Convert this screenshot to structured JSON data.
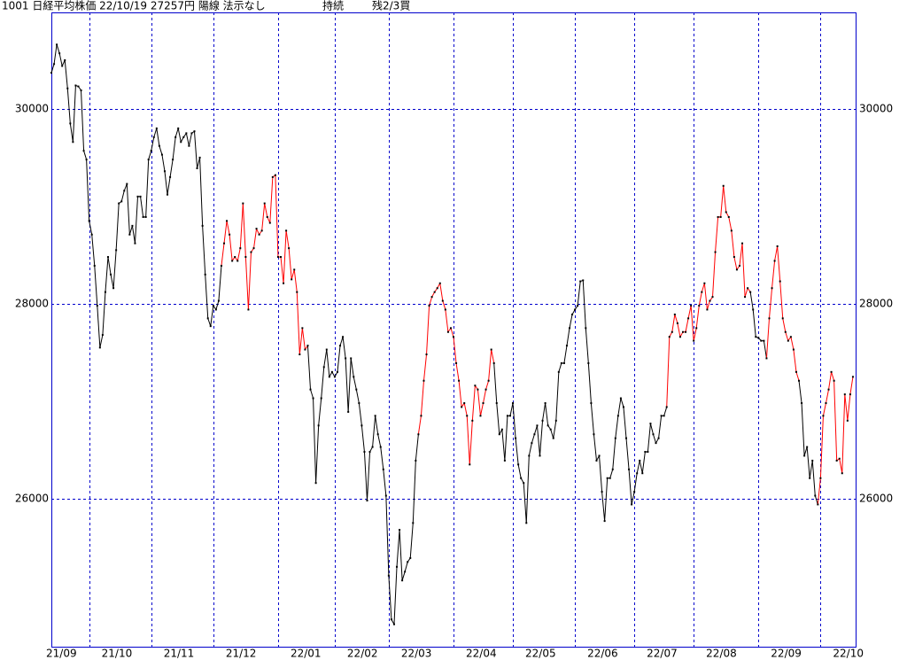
{
  "chart_data": {
    "type": "line",
    "title": "1001 日経平均株価 22/10/19 27257円 陽線 法示なし",
    "annotations": [
      "持続",
      "残2/3買"
    ],
    "xlim": [
      0,
      298
    ],
    "ylim": [
      24480,
      30990
    ],
    "yticks": [
      26000,
      28000,
      30000
    ],
    "grid": true,
    "xticks": [
      {
        "value": 0,
        "label": "21/09"
      },
      {
        "value": 14,
        "label": "21/10"
      },
      {
        "value": 37,
        "label": "21/11"
      },
      {
        "value": 60,
        "label": "21/12"
      },
      {
        "value": 84,
        "label": "22/01"
      },
      {
        "value": 105,
        "label": "22/02"
      },
      {
        "value": 125,
        "label": "22/03"
      },
      {
        "value": 149,
        "label": "22/04"
      },
      {
        "value": 171,
        "label": "22/05"
      },
      {
        "value": 194,
        "label": "22/06"
      },
      {
        "value": 216,
        "label": "22/07"
      },
      {
        "value": 238,
        "label": "22/08"
      },
      {
        "value": 262,
        "label": "22/09"
      },
      {
        "value": 285,
        "label": "22/10"
      }
    ],
    "values": [
      30370,
      30460,
      30660,
      30570,
      30440,
      30500,
      30210,
      29850,
      29660,
      30240,
      30230,
      30190,
      29570,
      29480,
      28850,
      28710,
      28390,
      27980,
      27550,
      27680,
      28120,
      28480,
      28300,
      28160,
      28550,
      29030,
      29050,
      29160,
      29230,
      28710,
      28800,
      28620,
      29100,
      29100,
      28890,
      28890,
      29480,
      29570,
      29710,
      29800,
      29620,
      29530,
      29360,
      29120,
      29300,
      29480,
      29710,
      29800,
      29660,
      29710,
      29750,
      29620,
      29750,
      29770,
      29390,
      29500,
      28800,
      28300,
      27850,
      27770,
      27980,
      27940,
      28030,
      28390,
      28620,
      28850,
      28710,
      28440,
      28480,
      28440,
      28570,
      29030,
      28480,
      27940,
      28530,
      28570,
      28770,
      28710,
      28750,
      29030,
      28890,
      28830,
      29300,
      29320,
      28480,
      28480,
      28210,
      28750,
      28570,
      28250,
      28350,
      28120,
      27480,
      27750,
      27530,
      27570,
      27120,
      27030,
      26160,
      26750,
      27030,
      27350,
      27530,
      27250,
      27300,
      27250,
      27300,
      27570,
      27660,
      27440,
      26890,
      27440,
      27250,
      27120,
      26980,
      26750,
      26480,
      25980,
      26480,
      26530,
      26850,
      26660,
      26530,
      26300,
      26030,
      25210,
      24760,
      24710,
      25300,
      25680,
      25160,
      25250,
      25350,
      25390,
      25750,
      26390,
      26660,
      26850,
      27210,
      27480,
      27980,
      28070,
      28120,
      28160,
      28210,
      28030,
      27940,
      27710,
      27750,
      27660,
      27390,
      27210,
      26940,
      26980,
      26850,
      26350,
      26800,
      27160,
      27120,
      26850,
      26980,
      27120,
      27210,
      27530,
      27390,
      26980,
      26660,
      26710,
      26390,
      26850,
      26850,
      26980,
      26620,
      26350,
      26210,
      26160,
      25750,
      26440,
      26570,
      26660,
      26750,
      26440,
      26800,
      26980,
      26750,
      26710,
      26620,
      26800,
      27300,
      27390,
      27390,
      27570,
      27750,
      27890,
      27940,
      27980,
      28230,
      28240,
      27750,
      27390,
      26980,
      26660,
      26390,
      26440,
      26070,
      25770,
      26210,
      26210,
      26300,
      26620,
      26850,
      27030,
      26940,
      26620,
      26300,
      25940,
      26070,
      26260,
      26390,
      26260,
      26480,
      26480,
      26770,
      26660,
      26570,
      26620,
      26850,
      26850,
      26940,
      27660,
      27710,
      27890,
      27800,
      27660,
      27710,
      27710,
      27850,
      27980,
      27620,
      27750,
      27980,
      28120,
      28210,
      27940,
      28030,
      28070,
      28530,
      28890,
      28890,
      29210,
      28940,
      28890,
      28750,
      28480,
      28350,
      28390,
      28620,
      28070,
      28160,
      28120,
      27940,
      27660,
      27650,
      27620,
      27620,
      27440,
      27850,
      28160,
      28440,
      28590,
      28230,
      27850,
      27710,
      27620,
      27660,
      27530,
      27300,
      27210,
      26980,
      26440,
      26530,
      26210,
      26390,
      26030,
      25940,
      26210,
      26850,
      26980,
      27120,
      27300,
      27210,
      26390,
      26410,
      26260,
      27070,
      26800,
      27070,
      27250
    ],
    "colors": [
      "black",
      "black",
      "black",
      "black",
      "black",
      "black",
      "black",
      "black",
      "black",
      "black",
      "black",
      "black",
      "black",
      "black",
      "black",
      "black",
      "black",
      "black",
      "black",
      "black",
      "black",
      "black",
      "black",
      "black",
      "black",
      "black",
      "black",
      "black",
      "black",
      "black",
      "black",
      "black",
      "black",
      "black",
      "black",
      "black",
      "black",
      "black",
      "black",
      "black",
      "black",
      "black",
      "black",
      "black",
      "black",
      "black",
      "black",
      "black",
      "black",
      "black",
      "black",
      "black",
      "black",
      "black",
      "black",
      "black",
      "black",
      "black",
      "black",
      "black",
      "black",
      "black",
      "black",
      "black",
      "red",
      "red",
      "red",
      "red",
      "red",
      "red",
      "red",
      "red",
      "red",
      "red",
      "red",
      "red",
      "red",
      "red",
      "red",
      "red",
      "red",
      "red",
      "red",
      "red",
      "red",
      "red",
      "red",
      "red",
      "red",
      "red",
      "red",
      "red",
      "red",
      "red",
      "red",
      "red",
      "black",
      "black",
      "black",
      "black",
      "black",
      "black",
      "black",
      "black",
      "black",
      "black",
      "black",
      "black",
      "black",
      "black",
      "black",
      "black",
      "black",
      "black",
      "black",
      "black",
      "black",
      "black",
      "black",
      "black",
      "black",
      "black",
      "black",
      "black",
      "black",
      "black",
      "black",
      "black",
      "black",
      "black",
      "black",
      "black",
      "black",
      "black",
      "black",
      "black",
      "black",
      "red",
      "red",
      "red",
      "red",
      "red",
      "red",
      "red",
      "red",
      "red",
      "red",
      "red",
      "red",
      "red",
      "red",
      "red",
      "red",
      "red",
      "red",
      "red",
      "red",
      "red",
      "red",
      "red",
      "red",
      "red",
      "red",
      "red",
      "red",
      "black",
      "black",
      "black",
      "black",
      "black",
      "black",
      "black",
      "black",
      "black",
      "black",
      "black",
      "black",
      "black",
      "black",
      "black",
      "black",
      "black",
      "black",
      "black",
      "black",
      "black",
      "black",
      "black",
      "black",
      "black",
      "black",
      "black",
      "black",
      "black",
      "black",
      "black",
      "black",
      "black",
      "black",
      "black",
      "black",
      "black",
      "black",
      "black",
      "black",
      "black",
      "black",
      "black",
      "black",
      "black",
      "black",
      "black",
      "black",
      "black",
      "black",
      "black",
      "black",
      "black",
      "black",
      "black",
      "black",
      "black",
      "black",
      "black",
      "black",
      "black",
      "black",
      "black",
      "black",
      "red",
      "red",
      "red",
      "red",
      "red",
      "red",
      "red",
      "red",
      "red",
      "red",
      "red",
      "red",
      "red",
      "red",
      "red",
      "red",
      "red",
      "red",
      "red",
      "red",
      "red",
      "red",
      "red",
      "red",
      "red",
      "red",
      "red",
      "red",
      "red",
      "red",
      "red",
      "black",
      "black",
      "black",
      "black",
      "black",
      "black",
      "red",
      "red",
      "red",
      "red",
      "red",
      "red",
      "red",
      "red",
      "red",
      "red",
      "red",
      "red",
      "black",
      "black",
      "black",
      "black",
      "black",
      "black",
      "black",
      "red",
      "red",
      "red",
      "red",
      "red",
      "red",
      "red",
      "red",
      "red",
      "red",
      "red",
      "red",
      "red"
    ]
  }
}
